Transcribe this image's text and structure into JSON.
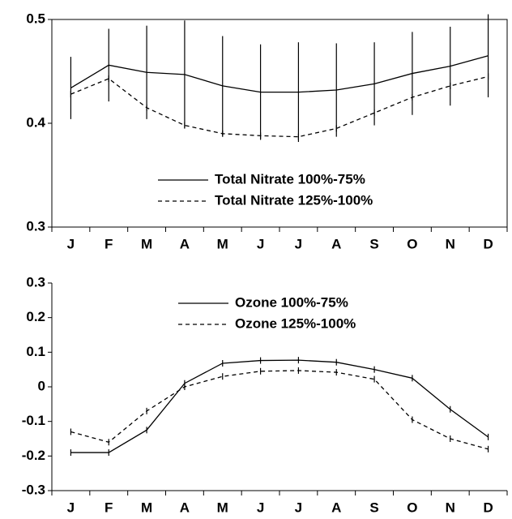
{
  "chart_data": [
    {
      "type": "line",
      "frame": true,
      "ylim": [
        0.3,
        0.5
      ],
      "yticks": [
        0.3,
        0.4,
        0.5
      ],
      "categories": [
        "J",
        "F",
        "M",
        "A",
        "M",
        "J",
        "J",
        "A",
        "S",
        "O",
        "N",
        "D"
      ],
      "series": [
        {
          "name": "Total Nitrate 100%-75%",
          "color": "#000000",
          "dash": "solid",
          "values": [
            0.434,
            0.456,
            0.449,
            0.447,
            0.436,
            0.43,
            0.43,
            0.432,
            0.438,
            0.448,
            0.455,
            0.465
          ],
          "errors": [
            0.03,
            0.035,
            0.045,
            0.052,
            0.048,
            0.046,
            0.048,
            0.045,
            0.04,
            0.04,
            0.038,
            0.04
          ]
        },
        {
          "name": "Total Nitrate 125%-100%",
          "color": "#000000",
          "dash": "dashed",
          "values": [
            0.428,
            0.443,
            0.415,
            0.398,
            0.39,
            0.388,
            0.387,
            0.395,
            0.41,
            0.425,
            0.436,
            0.445
          ]
        }
      ]
    },
    {
      "type": "line",
      "frame": false,
      "ylim": [
        -0.3,
        0.3
      ],
      "yticks": [
        -0.3,
        -0.2,
        -0.1,
        0,
        0.1,
        0.2,
        0.3
      ],
      "categories": [
        "J",
        "F",
        "M",
        "A",
        "M",
        "J",
        "J",
        "A",
        "S",
        "O",
        "N",
        "D"
      ],
      "series": [
        {
          "name": "Ozone 100%-75%",
          "color": "#000000",
          "dash": "solid",
          "values": [
            -0.19,
            -0.19,
            -0.125,
            0.01,
            0.068,
            0.076,
            0.077,
            0.071,
            0.05,
            0.025,
            -0.065,
            -0.145
          ]
        },
        {
          "name": "Ozone 125%-100%",
          "color": "#000000",
          "dash": "dashed",
          "values": [
            -0.13,
            -0.16,
            -0.07,
            0.0,
            0.03,
            0.045,
            0.047,
            0.042,
            0.022,
            -0.095,
            -0.15,
            -0.18
          ]
        }
      ]
    }
  ]
}
